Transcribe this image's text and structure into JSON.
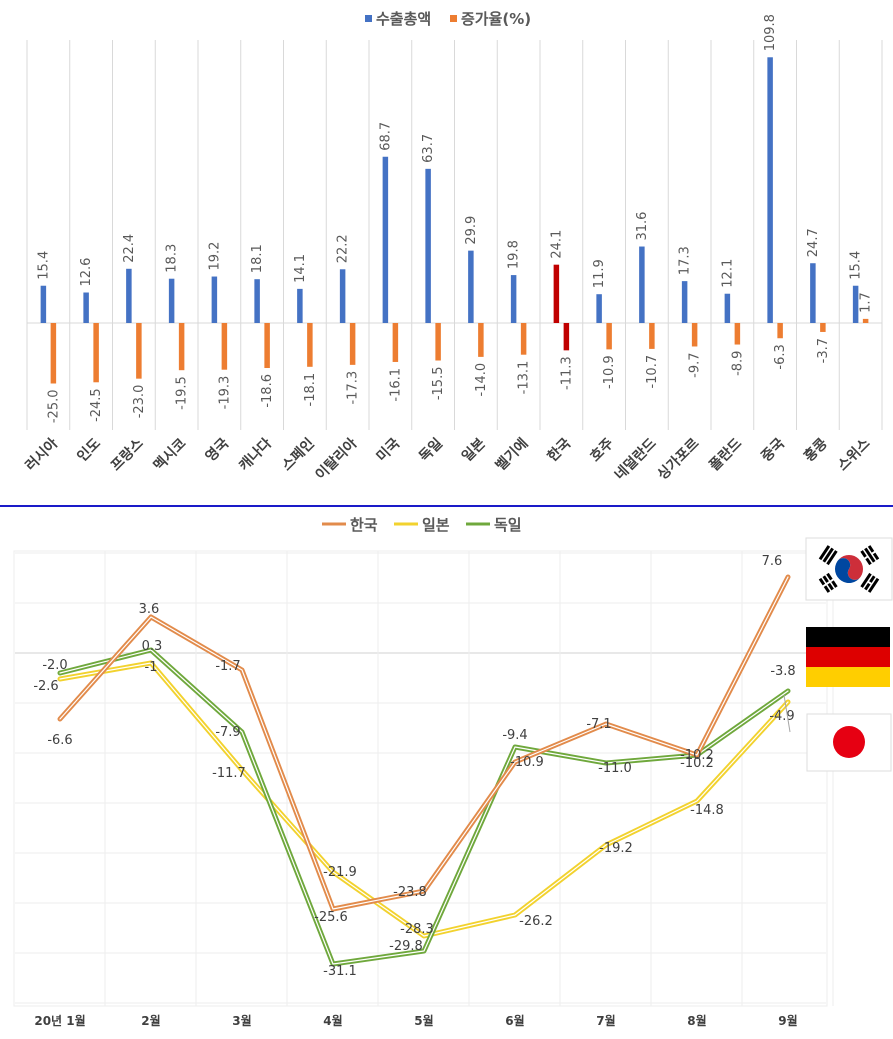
{
  "colors": {
    "export_bar": "#4472C4",
    "growth_bar": "#ED7D31",
    "korea_export_bar": "#C00000",
    "korea_growth_bar": "#C00000",
    "line_korea": "#E28B4B",
    "line_japan": "#F2D22E",
    "line_germany": "#6FA83C",
    "divider": "#1A1AC8",
    "grid": "#D9D9D9"
  },
  "chart_data": [
    {
      "type": "bar",
      "legend": [
        "수출총액",
        "증가율(%)"
      ],
      "categories": [
        "러시아",
        "인도",
        "프랑스",
        "멕시코",
        "영국",
        "캐나다",
        "스페인",
        "이탈리아",
        "미국",
        "독일",
        "일본",
        "벨기에",
        "한국",
        "호주",
        "네덜란드",
        "싱가포르",
        "폴란드",
        "중국",
        "홍콩",
        "스위스"
      ],
      "highlight": "한국",
      "series": [
        {
          "name": "수출총액",
          "values": [
            15.4,
            12.6,
            22.4,
            18.3,
            19.2,
            18.1,
            14.1,
            22.2,
            68.7,
            63.7,
            29.9,
            19.8,
            24.1,
            11.9,
            31.6,
            17.3,
            12.1,
            109.8,
            24.7,
            15.4
          ]
        },
        {
          "name": "증가율(%)",
          "values": [
            -25.0,
            -24.5,
            -23.0,
            -19.5,
            -19.3,
            -18.6,
            -18.1,
            -17.3,
            -16.1,
            -15.5,
            -14.0,
            -13.1,
            -11.3,
            -10.9,
            -10.7,
            -9.7,
            -8.9,
            -6.3,
            -3.7,
            1.7
          ]
        }
      ],
      "label_texts": {
        "수출총액": [
          "15.4",
          "12.6",
          "22.4",
          "18.3",
          "19.2",
          "18.1",
          "14.1",
          "22.2",
          "68.7",
          "63.7",
          "29.9",
          "19.8",
          "24.1",
          "11.9",
          "31.6",
          "17.3",
          "12.1",
          "109.8",
          "24.7",
          "15.4"
        ],
        "증가율(%)": [
          "-25.0",
          "-24.5",
          "-23.0",
          "-19.5",
          "-19.3",
          "-18.6",
          "-18.1",
          "-17.3",
          "-16.1",
          "-15.5",
          "-14.0",
          "-13.1",
          "-11.3",
          "-10.9",
          "-10.7",
          "-9.7",
          "-8.9",
          "-6.3",
          "-3.7",
          "1.7"
        ]
      },
      "ylim": [
        -40,
        120
      ]
    },
    {
      "type": "line",
      "legend": [
        "한국",
        "일본",
        "독일"
      ],
      "x": [
        "20년 1월",
        "2월",
        "3월",
        "4월",
        "5월",
        "6월",
        "7월",
        "8월",
        "9월"
      ],
      "series": [
        {
          "name": "한국",
          "values": [
            -6.6,
            3.6,
            -1.7,
            -25.6,
            -23.8,
            -10.9,
            -7.1,
            -10.2,
            7.6
          ],
          "labels": [
            "-6.6",
            "3.6",
            "-1.7",
            "-25.6",
            "-23.8",
            "-10.9",
            "-7.1",
            "-10.2",
            "7.6"
          ]
        },
        {
          "name": "일본",
          "values": [
            -2.6,
            -1.0,
            -11.7,
            -21.9,
            -28.3,
            -26.2,
            -19.2,
            -14.8,
            -4.9
          ],
          "labels": [
            "-2.6",
            "-1",
            "-11.7",
            "-21.9",
            "-28.3",
            "-26.2",
            "-19.2",
            "-14.8",
            "-4.9"
          ]
        },
        {
          "name": "독일",
          "values": [
            -2.0,
            0.3,
            -7.9,
            -31.1,
            -29.8,
            -9.4,
            -11.0,
            -10.2,
            -3.8
          ],
          "labels": [
            "-2.0",
            "0.3",
            "-7.9",
            "-31.1",
            "-29.8",
            "-9.4",
            "-11.0",
            "-10.2",
            "-3.8"
          ]
        }
      ],
      "ylim": [
        -35,
        15
      ],
      "flags": [
        "korea-flag",
        "germany-flag",
        "japan-flag"
      ]
    }
  ]
}
